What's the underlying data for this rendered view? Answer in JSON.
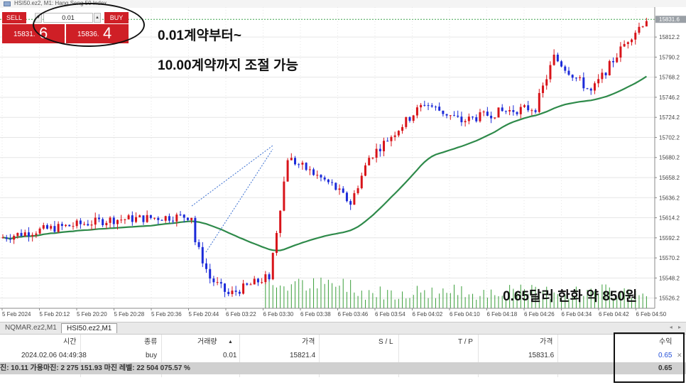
{
  "window": {
    "title": "HSI50.ez2, M1: Hang Seng 50 Index",
    "icon": "chart-window-icon"
  },
  "trade_panel": {
    "sell_label": "SELL",
    "buy_label": "BUY",
    "lot_value": "0.01",
    "sell_price_main": "15831.",
    "sell_price_big": "6",
    "buy_price_main": "15836.",
    "buy_price_big": "4"
  },
  "annotations": {
    "line1": "0.01계약부터~",
    "line2": "10.00계약까지 조절 가능",
    "line3": "0.65달러 한화 약 850원"
  },
  "chart": {
    "price_labels": [
      "15812.2",
      "15790.2",
      "15768.2",
      "15746.2",
      "15724.2",
      "15702.2",
      "15680.2",
      "15658.2",
      "15636.2",
      "15614.2",
      "15592.2",
      "15570.2",
      "15548.2",
      "15526.2"
    ],
    "current_price_label": "15831.6",
    "time_labels": [
      "5 Feb 2024",
      "5 Feb 20:12",
      "5 Feb 20:20",
      "5 Feb 20:28",
      "5 Feb 20:36",
      "5 Feb 20:44",
      "6 Feb 03:22",
      "6 Feb 03:30",
      "6 Feb 03:38",
      "6 Feb 03:46",
      "6 Feb 03:54",
      "6 Feb 04:02",
      "6 Feb 04:10",
      "6 Feb 04:18",
      "6 Feb 04:26",
      "6 Feb 04:34",
      "6 Feb 04:42",
      "6 Feb 04:50"
    ],
    "colors": {
      "bull": "#d8141a",
      "bear": "#1c2bd9",
      "ma": "#2e8a4a",
      "volume": "#3a9e3a",
      "grid": "#e6e6e6",
      "current_line": "#3fa34d"
    }
  },
  "chart_data": {
    "type": "candlestick",
    "price_range": [
      15515,
      15845
    ],
    "moving_average_visible": true,
    "volume_visible": true
  },
  "tabs": [
    {
      "label": "NQMAR.ez2,M1"
    },
    {
      "label": "HSI50.ez2,M1"
    }
  ],
  "trades": {
    "columns": [
      "시간",
      "종류",
      "거래량",
      "가격",
      "S / L",
      "T / P",
      "가격",
      "수익"
    ],
    "rows": [
      {
        "time": "2024.02.06 04:49:38",
        "type": "buy",
        "volume": "0.01",
        "open_price": "15821.4",
        "sl": "",
        "tp": "",
        "price": "15831.6",
        "profit": "0.65"
      }
    ],
    "summary": "진: 10.11  가용마진: 2 275 151.93  마진 레벨: 22 504 075.57 %",
    "summary_profit": "0.65"
  }
}
